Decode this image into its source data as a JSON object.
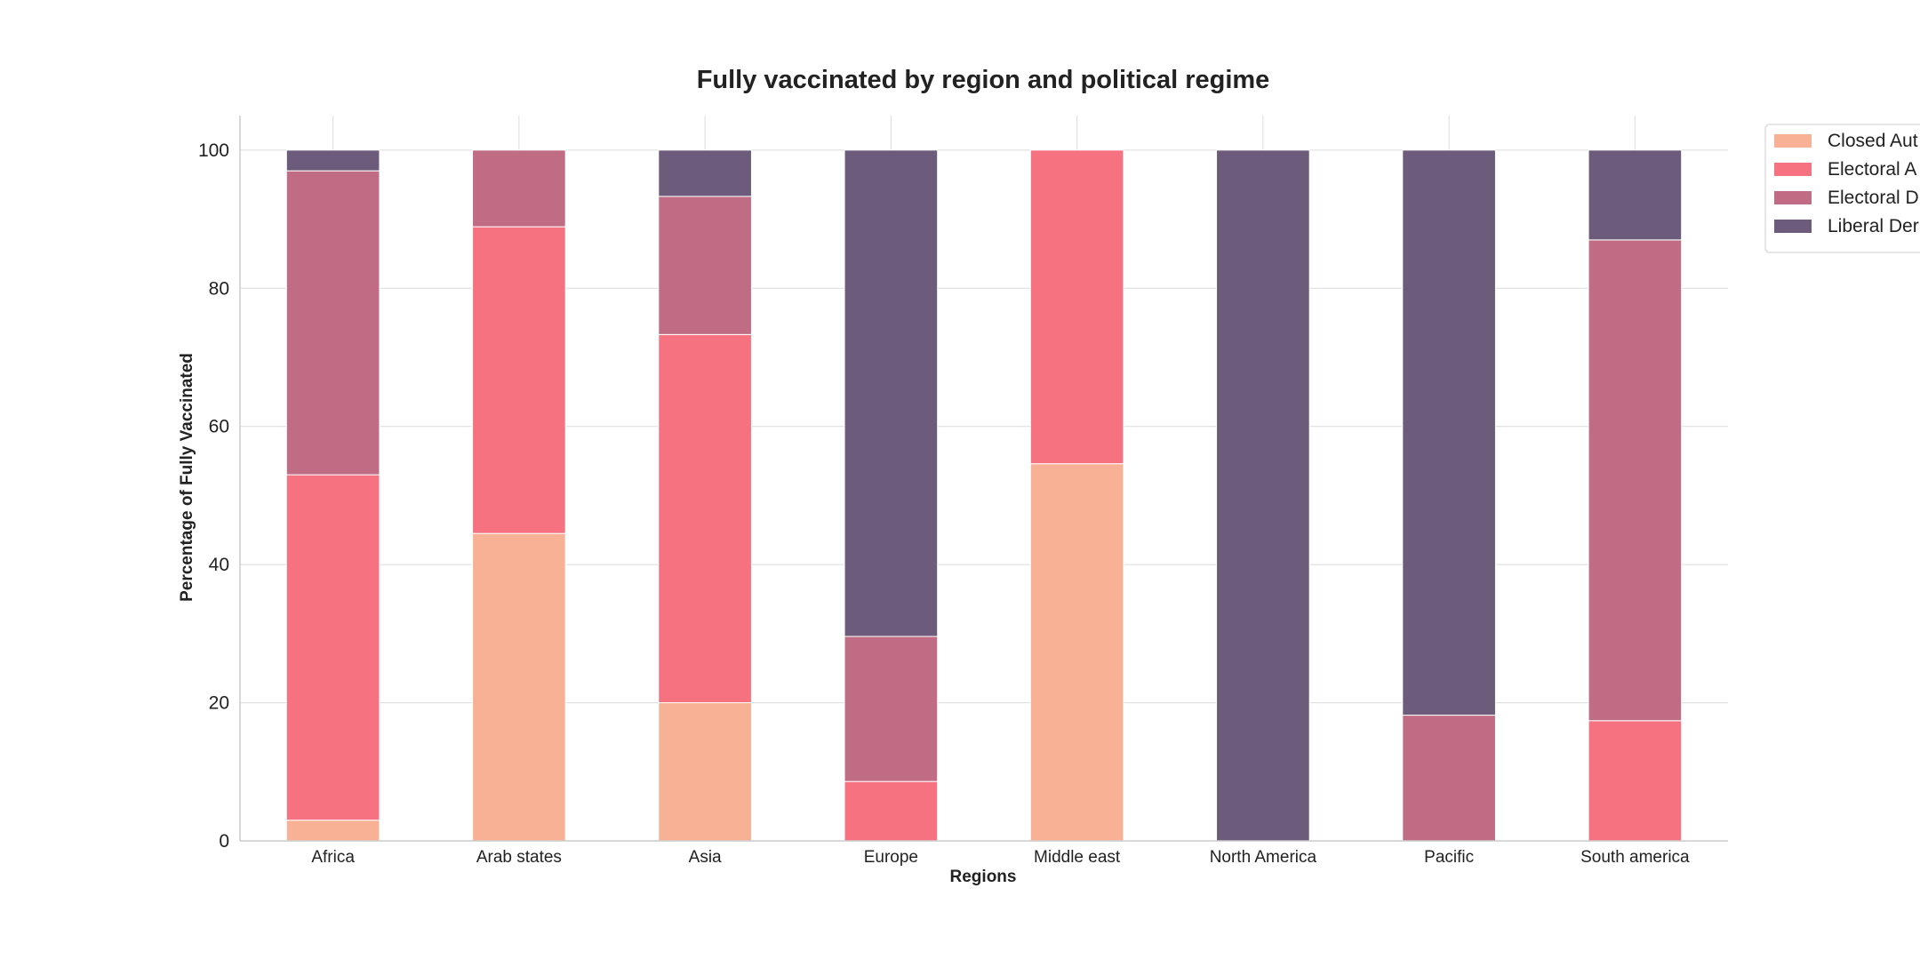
{
  "chart_data": {
    "type": "bar",
    "stacked": true,
    "title": "Fully vaccinated by region and political regime",
    "xlabel": "Regions",
    "ylabel": "Percentage of Fully Vaccinated",
    "ylim": [
      0,
      105
    ],
    "yticks": [
      0,
      20,
      40,
      60,
      80,
      100
    ],
    "grid": true,
    "legend_position": "top-right",
    "categories": [
      "Africa",
      "Arab states",
      "Asia",
      "Europe",
      "Middle east",
      "North America",
      "Pacific",
      "South america"
    ],
    "series": [
      {
        "name": "Closed Aut",
        "color": "#f8b195",
        "values": [
          3,
          44.5,
          20,
          0,
          54.6,
          0,
          0,
          0
        ]
      },
      {
        "name": "Electoral A",
        "color": "#f67280",
        "values": [
          50,
          44.4,
          53.3,
          8.6,
          45.4,
          0,
          0,
          17.4
        ]
      },
      {
        "name": "Electoral D",
        "color": "#c06c84",
        "values": [
          44,
          11.1,
          20,
          21,
          0,
          0,
          18.2,
          69.6
        ]
      },
      {
        "name": "Liberal Der",
        "color": "#6c5b7b",
        "values": [
          3,
          0,
          6.7,
          70.4,
          0,
          100,
          81.8,
          13
        ]
      }
    ]
  }
}
